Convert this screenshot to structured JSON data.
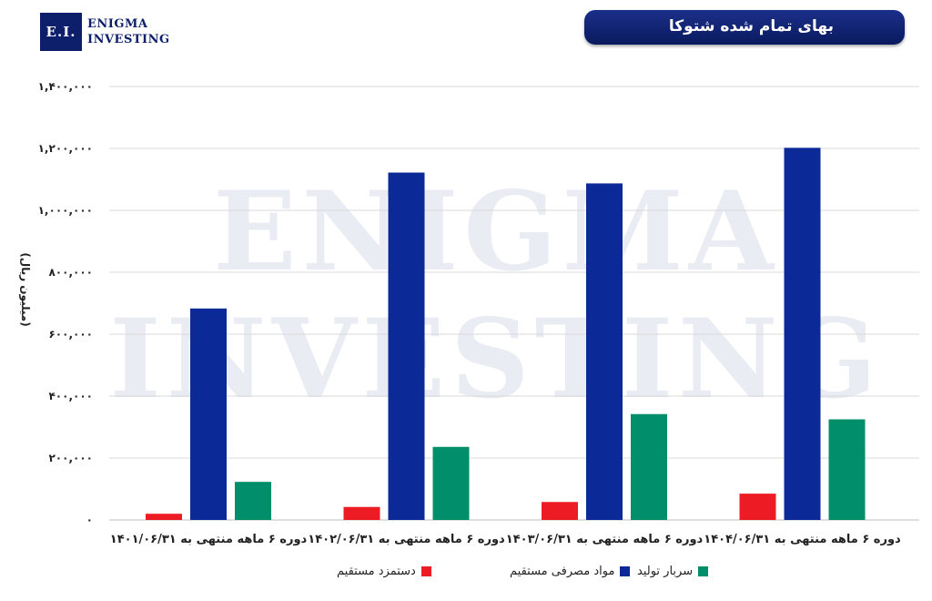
{
  "logo": {
    "mark": "E.I.",
    "line1": "ENIGMA",
    "line2": "INVESTING"
  },
  "watermark": {
    "line1": "ENIGMA",
    "line2": "INVESTING"
  },
  "title": "بهای تمام شده شتوکا",
  "colors": {
    "red": "#ed1c24",
    "blue": "#0b2a97",
    "green": "#008f6a",
    "navy": "#0d1f6b"
  },
  "chart_data": {
    "type": "bar",
    "ylabel": "(میلیون ریال)",
    "ylim": [
      0,
      1400000
    ],
    "yticks": [
      "۰",
      "۲۰۰,۰۰۰",
      "۴۰۰,۰۰۰",
      "۶۰۰,۰۰۰",
      "۸۰۰,۰۰۰",
      "۱,۰۰۰,۰۰۰",
      "۱,۲۰۰,۰۰۰",
      "۱,۴۰۰,۰۰۰"
    ],
    "ytick_values": [
      0,
      200000,
      400000,
      600000,
      800000,
      1000000,
      1200000,
      1400000
    ],
    "grid": true,
    "legend_position": "bottom",
    "categories": [
      "دوره ۶ ماهه منتهی به ۱۴۰۱/۰۶/۳۱",
      "دوره ۶ ماهه منتهی به ۱۴۰۲/۰۶/۳۱",
      "دوره ۶ ماهه منتهی به ۱۴۰۳/۰۶/۳۱",
      "دوره ۶ ماهه منتهی به ۱۴۰۴/۰۶/۳۱"
    ],
    "series": [
      {
        "name": "دستمزد مستقیم",
        "color": "#ed1c24",
        "values": [
          20000,
          42000,
          58000,
          85000
        ]
      },
      {
        "name": "مواد مصرفی مستقیم",
        "color": "#0b2a97",
        "values": [
          683000,
          1122000,
          1087000,
          1202000
        ]
      },
      {
        "name": "سربار تولید",
        "color": "#008f6a",
        "values": [
          123000,
          236000,
          342000,
          325000
        ]
      }
    ]
  }
}
